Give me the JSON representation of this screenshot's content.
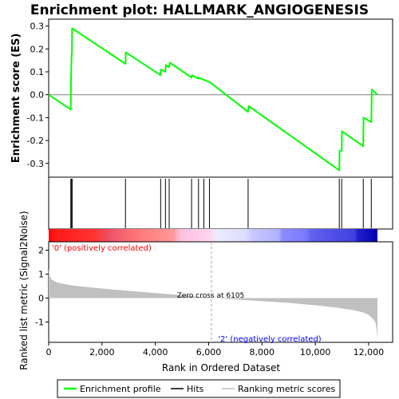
{
  "chart_data": {
    "type": "line",
    "title": "Enrichment plot: HALLMARK_ANGIOGENESIS",
    "es_panel": {
      "ylabel": "Enrichment score (ES)",
      "ylim": [
        -0.36,
        0.33
      ],
      "yticks": [
        -0.3,
        -0.2,
        -0.1,
        0.0,
        0.1,
        0.2,
        0.3
      ],
      "ytick_labels": [
        "-0.3",
        "-0.2",
        "-0.1",
        "0.0",
        "0.1",
        "0.2",
        "0.3"
      ],
      "series": [
        {
          "name": "Enrichment profile",
          "color": "#00ff00",
          "x": [
            0,
            830,
            835,
            860,
            870,
            880,
            2880,
            2890,
            4200,
            4210,
            4380,
            4390,
            4520,
            4540,
            5360,
            5370,
            5620,
            5630,
            5820,
            5830,
            6030,
            6040,
            7480,
            7500,
            10900,
            10910,
            10990,
            11000,
            11800,
            11810,
            12100,
            12120,
            12330
          ],
          "y": [
            0.0,
            -0.065,
            0.05,
            0.175,
            0.175,
            0.29,
            0.135,
            0.185,
            0.085,
            0.11,
            0.1,
            0.13,
            0.12,
            0.14,
            0.075,
            0.085,
            0.07,
            0.075,
            0.065,
            0.065,
            0.055,
            0.055,
            -0.075,
            -0.05,
            -0.33,
            -0.245,
            -0.245,
            -0.16,
            -0.225,
            -0.1,
            -0.12,
            0.023,
            0.0
          ]
        }
      ]
    },
    "hits": {
      "name": "Hits",
      "x": [
        830,
        860,
        880,
        2880,
        4200,
        4380,
        4520,
        5360,
        5620,
        5820,
        6030,
        7480,
        10900,
        10990,
        11800,
        12100
      ]
    },
    "metric_panel": {
      "ylabel": "Ranked list metric (Signal2Noise)",
      "xlabel": "Rank in Ordered Dataset",
      "ylim": [
        -1.85,
        2.35
      ],
      "yticks": [
        -1,
        0,
        1,
        2
      ],
      "ytick_labels": [
        "-1",
        "0",
        "1",
        "2"
      ],
      "xlim": [
        0,
        12900
      ],
      "xticks": [
        0,
        2000,
        4000,
        6000,
        8000,
        10000,
        12000
      ],
      "xtick_labels": [
        "0",
        "2,000",
        "4,000",
        "6,000",
        "8,000",
        "10,000",
        "12,000"
      ],
      "series": [
        {
          "name": "Ranking metric scores",
          "color": "#c0c0c0",
          "x": [
            0,
            30,
            100,
            300,
            600,
            1000,
            2000,
            3000,
            4000,
            5000,
            6105,
            7000,
            8000,
            9000,
            10000,
            10800,
            11400,
            11800,
            12000,
            12150,
            12250,
            12300,
            12330
          ],
          "y": [
            1.25,
            0.95,
            0.78,
            0.66,
            0.58,
            0.51,
            0.4,
            0.3,
            0.21,
            0.12,
            0.0,
            -0.06,
            -0.13,
            -0.2,
            -0.3,
            -0.4,
            -0.5,
            -0.6,
            -0.7,
            -0.85,
            -1.0,
            -1.3,
            -1.75
          ]
        }
      ],
      "annotations": [
        {
          "key": "pos",
          "text": "'0' (positively correlated)",
          "color": "#ff0000"
        },
        {
          "key": "zero",
          "text": "Zero cross at 6105",
          "color": "#000000",
          "x": 6105
        },
        {
          "key": "neg",
          "text": "'2' (negatively correlated)",
          "color": "#0000ff"
        }
      ]
    },
    "legend": {
      "placement": "bottom",
      "entries": [
        {
          "label": "Enrichment profile",
          "color": "#00ff00"
        },
        {
          "label": "Hits",
          "color": "#000000"
        },
        {
          "label": "Ranking metric scores",
          "color": "#c0c0c0"
        }
      ]
    }
  }
}
